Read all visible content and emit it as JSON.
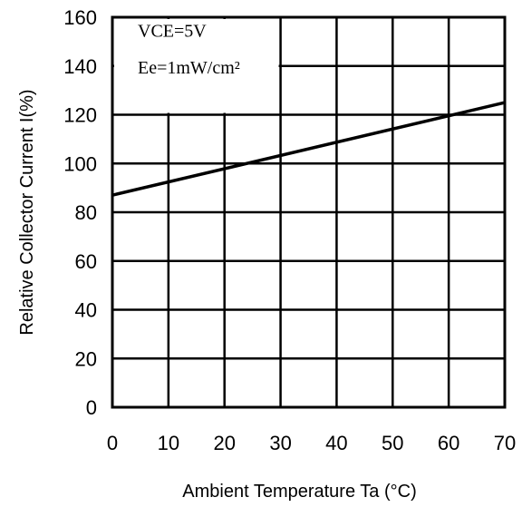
{
  "chart_data": {
    "type": "line",
    "xlabel": "Ambient Temperature Ta (°C)",
    "ylabel": "Relative Collector Current I(%)",
    "xlim": [
      0,
      70
    ],
    "ylim": [
      0,
      160
    ],
    "x_ticks": [
      0,
      10,
      20,
      30,
      40,
      50,
      60,
      70
    ],
    "y_ticks": [
      0,
      20,
      40,
      60,
      80,
      100,
      120,
      140,
      160
    ],
    "grid": true,
    "annotations": [
      "VCE=5V",
      "Ee=1mW/cm²"
    ],
    "series": [
      {
        "x": [
          0,
          70
        ],
        "y": [
          87,
          125
        ]
      }
    ]
  }
}
